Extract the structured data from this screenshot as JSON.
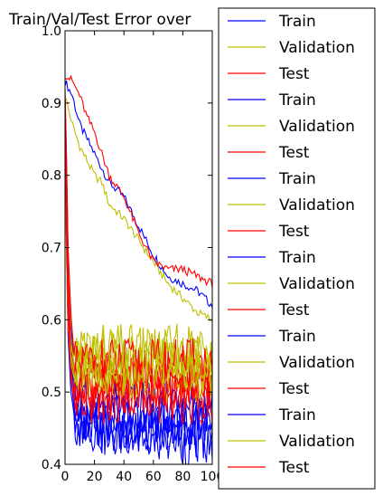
{
  "chart_data": {
    "type": "line",
    "title": "Train/Val/Test Error over",
    "xlabel": "",
    "ylabel": "",
    "xlim": [
      0,
      100
    ],
    "ylim": [
      0.4,
      1.0
    ],
    "x_ticks": [
      0,
      20,
      40,
      60,
      80,
      100
    ],
    "x_tick_labels": [
      "0",
      "20",
      "40",
      "60",
      "80",
      "100"
    ],
    "y_ticks": [
      0.4,
      0.5,
      0.6,
      0.7,
      0.8,
      0.9,
      1.0
    ],
    "y_tick_labels": [
      "0.4",
      "0.5",
      "0.6",
      "0.7",
      "0.8",
      "0.9",
      "1.0"
    ],
    "grid": false,
    "legend_position": "right, outside plot",
    "legend_entries": [
      {
        "label": "Train",
        "color": "#0000ff"
      },
      {
        "label": "Validation",
        "color": "#bfbf00"
      },
      {
        "label": "Test",
        "color": "#ff0000"
      },
      {
        "label": "Train",
        "color": "#0000ff"
      },
      {
        "label": "Validation",
        "color": "#bfbf00"
      },
      {
        "label": "Test",
        "color": "#ff0000"
      },
      {
        "label": "Train",
        "color": "#0000ff"
      },
      {
        "label": "Validation",
        "color": "#bfbf00"
      },
      {
        "label": "Test",
        "color": "#ff0000"
      },
      {
        "label": "Train",
        "color": "#0000ff"
      },
      {
        "label": "Validation",
        "color": "#bfbf00"
      },
      {
        "label": "Test",
        "color": "#ff0000"
      },
      {
        "label": "Train",
        "color": "#0000ff"
      },
      {
        "label": "Validation",
        "color": "#bfbf00"
      },
      {
        "label": "Test",
        "color": "#ff0000"
      },
      {
        "label": "Train",
        "color": "#0000ff"
      },
      {
        "label": "Validation",
        "color": "#bfbf00"
      },
      {
        "label": "Test",
        "color": "#ff0000"
      }
    ],
    "series": [
      {
        "name": "Train",
        "color": "#0000ff",
        "x": [
          0,
          5,
          10,
          15,
          20,
          25,
          30,
          40,
          50,
          60,
          70,
          80,
          90,
          100
        ],
        "y": [
          0.93,
          0.91,
          0.87,
          0.85,
          0.83,
          0.81,
          0.79,
          0.77,
          0.73,
          0.69,
          0.66,
          0.65,
          0.64,
          0.62
        ]
      },
      {
        "name": "Validation",
        "color": "#bfbf00",
        "x": [
          0,
          5,
          10,
          15,
          20,
          25,
          30,
          40,
          50,
          60,
          70,
          80,
          90,
          100
        ],
        "y": [
          0.91,
          0.87,
          0.84,
          0.82,
          0.8,
          0.79,
          0.76,
          0.74,
          0.71,
          0.68,
          0.65,
          0.63,
          0.61,
          0.6
        ]
      },
      {
        "name": "Test",
        "color": "#ff0000",
        "x": [
          0,
          5,
          10,
          15,
          20,
          25,
          30,
          40,
          50,
          60,
          70,
          80,
          90,
          100
        ],
        "y": [
          0.94,
          0.93,
          0.91,
          0.88,
          0.86,
          0.83,
          0.8,
          0.77,
          0.72,
          0.68,
          0.67,
          0.67,
          0.66,
          0.65
        ]
      },
      {
        "name": "Train",
        "color": "#0000ff",
        "x": [
          0,
          1,
          2,
          4,
          6,
          8,
          10,
          15,
          20,
          30,
          40,
          50,
          60,
          70,
          80,
          90,
          100
        ],
        "y": [
          0.91,
          0.82,
          0.7,
          0.6,
          0.53,
          0.5,
          0.48,
          0.46,
          0.45,
          0.44,
          0.45,
          0.44,
          0.45,
          0.44,
          0.44,
          0.44,
          0.44
        ]
      },
      {
        "name": "Validation",
        "color": "#bfbf00",
        "x": [
          0,
          1,
          2,
          4,
          6,
          8,
          10,
          15,
          20,
          30,
          40,
          50,
          60,
          70,
          80,
          90,
          100
        ],
        "y": [
          0.89,
          0.8,
          0.68,
          0.6,
          0.56,
          0.55,
          0.55,
          0.55,
          0.55,
          0.55,
          0.55,
          0.55,
          0.55,
          0.55,
          0.55,
          0.55,
          0.55
        ]
      },
      {
        "name": "Test",
        "color": "#ff0000",
        "x": [
          0,
          1,
          2,
          4,
          6,
          8,
          10,
          15,
          20,
          30,
          40,
          50,
          60,
          70,
          80,
          90,
          100
        ],
        "y": [
          0.92,
          0.83,
          0.7,
          0.61,
          0.55,
          0.53,
          0.52,
          0.52,
          0.52,
          0.52,
          0.52,
          0.52,
          0.52,
          0.52,
          0.52,
          0.52,
          0.52
        ]
      },
      {
        "name": "Train",
        "color": "#0000ff",
        "x": [
          0,
          1,
          2,
          4,
          6,
          8,
          10,
          15,
          20,
          30,
          40,
          50,
          60,
          70,
          80,
          90,
          100
        ],
        "y": [
          0.9,
          0.78,
          0.66,
          0.57,
          0.5,
          0.47,
          0.46,
          0.45,
          0.45,
          0.44,
          0.44,
          0.44,
          0.43,
          0.44,
          0.43,
          0.43,
          0.43
        ]
      },
      {
        "name": "Validation",
        "color": "#bfbf00",
        "x": [
          0,
          1,
          2,
          4,
          6,
          8,
          10,
          15,
          20,
          30,
          40,
          50,
          60,
          70,
          80,
          90,
          100
        ],
        "y": [
          0.88,
          0.76,
          0.64,
          0.57,
          0.54,
          0.54,
          0.54,
          0.54,
          0.54,
          0.54,
          0.54,
          0.54,
          0.54,
          0.54,
          0.54,
          0.54,
          0.54
        ]
      },
      {
        "name": "Test",
        "color": "#ff0000",
        "x": [
          0,
          1,
          2,
          4,
          6,
          8,
          10,
          15,
          20,
          30,
          40,
          50,
          60,
          70,
          80,
          90,
          100
        ],
        "y": [
          0.91,
          0.79,
          0.66,
          0.56,
          0.52,
          0.51,
          0.51,
          0.51,
          0.51,
          0.51,
          0.51,
          0.51,
          0.51,
          0.51,
          0.51,
          0.51,
          0.51
        ]
      },
      {
        "name": "Train",
        "color": "#0000ff",
        "x": [
          0,
          1,
          2,
          4,
          6,
          8,
          10,
          15,
          20,
          30,
          40,
          50,
          60,
          70,
          80,
          90,
          100
        ],
        "y": [
          0.89,
          0.74,
          0.62,
          0.54,
          0.5,
          0.49,
          0.49,
          0.48,
          0.48,
          0.48,
          0.48,
          0.48,
          0.48,
          0.48,
          0.48,
          0.48,
          0.48
        ]
      },
      {
        "name": "Validation",
        "color": "#bfbf00",
        "x": [
          0,
          1,
          2,
          4,
          6,
          8,
          10,
          15,
          20,
          30,
          40,
          50,
          60,
          70,
          80,
          90,
          100
        ],
        "y": [
          0.87,
          0.73,
          0.62,
          0.56,
          0.55,
          0.56,
          0.56,
          0.56,
          0.56,
          0.56,
          0.56,
          0.56,
          0.56,
          0.56,
          0.56,
          0.56,
          0.56
        ]
      },
      {
        "name": "Test",
        "color": "#ff0000",
        "x": [
          0,
          1,
          2,
          4,
          6,
          8,
          10,
          15,
          20,
          30,
          40,
          50,
          60,
          70,
          80,
          90,
          100
        ],
        "y": [
          0.9,
          0.76,
          0.63,
          0.55,
          0.52,
          0.53,
          0.54,
          0.54,
          0.54,
          0.54,
          0.54,
          0.54,
          0.54,
          0.54,
          0.54,
          0.54,
          0.54
        ]
      },
      {
        "name": "Train",
        "color": "#0000ff",
        "x": [
          0,
          1,
          2,
          4,
          6,
          8,
          10,
          15,
          20,
          30,
          40,
          50,
          60,
          70,
          80,
          90,
          100
        ],
        "y": [
          0.88,
          0.72,
          0.6,
          0.52,
          0.48,
          0.47,
          0.46,
          0.46,
          0.46,
          0.46,
          0.46,
          0.46,
          0.46,
          0.46,
          0.46,
          0.46,
          0.46
        ]
      },
      {
        "name": "Validation",
        "color": "#bfbf00",
        "x": [
          0,
          1,
          2,
          4,
          6,
          8,
          10,
          15,
          20,
          30,
          40,
          50,
          60,
          70,
          80,
          90,
          100
        ],
        "y": [
          0.86,
          0.7,
          0.6,
          0.55,
          0.53,
          0.53,
          0.53,
          0.53,
          0.53,
          0.53,
          0.53,
          0.53,
          0.53,
          0.53,
          0.53,
          0.53,
          0.53
        ]
      },
      {
        "name": "Test",
        "color": "#ff0000",
        "x": [
          0,
          1,
          2,
          4,
          6,
          8,
          10,
          15,
          20,
          30,
          40,
          50,
          60,
          70,
          80,
          90,
          100
        ],
        "y": [
          0.89,
          0.74,
          0.62,
          0.53,
          0.5,
          0.5,
          0.5,
          0.5,
          0.5,
          0.5,
          0.5,
          0.5,
          0.5,
          0.5,
          0.5,
          0.5,
          0.5
        ]
      },
      {
        "name": "Train",
        "color": "#0000ff",
        "x": [
          0,
          1,
          2,
          4,
          6,
          8,
          10,
          15,
          20,
          30,
          40,
          50,
          60,
          70,
          80,
          90,
          100
        ],
        "y": [
          0.87,
          0.7,
          0.58,
          0.5,
          0.47,
          0.46,
          0.45,
          0.45,
          0.45,
          0.45,
          0.45,
          0.45,
          0.45,
          0.45,
          0.45,
          0.45,
          0.45
        ]
      },
      {
        "name": "Validation",
        "color": "#bfbf00",
        "x": [
          0,
          1,
          2,
          4,
          6,
          8,
          10,
          15,
          20,
          30,
          40,
          50,
          60,
          70,
          80,
          90,
          100
        ],
        "y": [
          0.85,
          0.69,
          0.59,
          0.54,
          0.52,
          0.52,
          0.52,
          0.52,
          0.52,
          0.52,
          0.52,
          0.52,
          0.52,
          0.52,
          0.52,
          0.52,
          0.52
        ]
      },
      {
        "name": "Test",
        "color": "#ff0000",
        "x": [
          0,
          1,
          2,
          4,
          6,
          8,
          10,
          15,
          20,
          30,
          40,
          50,
          60,
          70,
          80,
          90,
          100
        ],
        "y": [
          0.88,
          0.72,
          0.6,
          0.52,
          0.49,
          0.49,
          0.49,
          0.49,
          0.49,
          0.49,
          0.49,
          0.49,
          0.49,
          0.49,
          0.49,
          0.49,
          0.49
        ]
      }
    ]
  }
}
